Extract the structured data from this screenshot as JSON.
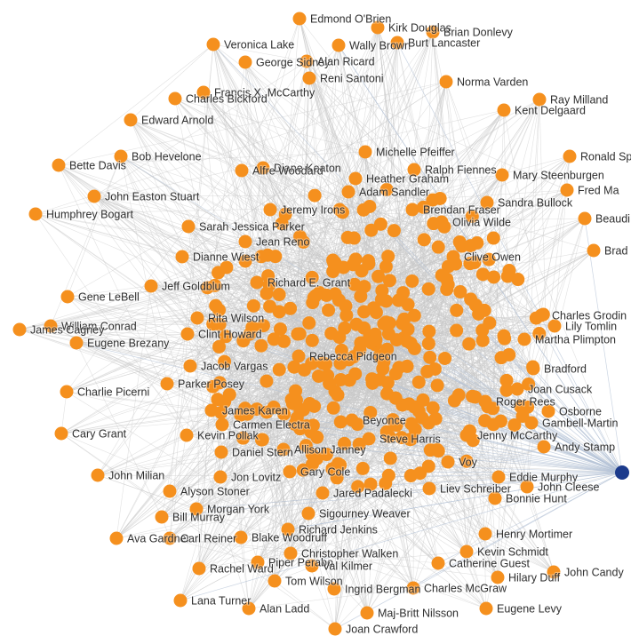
{
  "graph": {
    "colors": {
      "node": "#f5901e",
      "node_selected": "#1b3a8c",
      "edge": "#c8c8c8",
      "label": "#2f2f2f",
      "background": "#ffffff"
    },
    "selected_label": "Stev",
    "nodes": [
      {
        "label": "Edmond O'Brien"
      },
      {
        "label": "Kirk Douglas"
      },
      {
        "label": "Brian Donlevy"
      },
      {
        "label": "Veronica Lake"
      },
      {
        "label": "Wally Brown"
      },
      {
        "label": "Burt Lancaster"
      },
      {
        "label": "George Sidney"
      },
      {
        "label": "Alan Ricard"
      },
      {
        "label": "Reni Santoni"
      },
      {
        "label": "Norma Varden"
      },
      {
        "label": "Ray Milland"
      },
      {
        "label": "Francis X. McCarthy"
      },
      {
        "label": "Charles Bickford"
      },
      {
        "label": "Kent Delgaard"
      },
      {
        "label": "Edward Arnold"
      },
      {
        "label": "Michelle Pfeiffer"
      },
      {
        "label": "Ronald Sp"
      },
      {
        "label": "Bob Hevelone"
      },
      {
        "label": "Bette Davis"
      },
      {
        "label": "Diane Keaton"
      },
      {
        "label": "Ralph Fiennes"
      },
      {
        "label": "Mary Steenburgen"
      },
      {
        "label": "Heather Graham"
      },
      {
        "label": "Fred Ma"
      },
      {
        "label": "Alfre Woodard"
      },
      {
        "label": "John Easton Stuart"
      },
      {
        "label": "Adam Sandler"
      },
      {
        "label": "Sandra Bullock"
      },
      {
        "label": "Humphrey Bogart"
      },
      {
        "label": "Jeremy Irons"
      },
      {
        "label": "Brendan Fraser"
      },
      {
        "label": "Beaudi"
      },
      {
        "label": "Sarah Jessica Parker"
      },
      {
        "label": "Olivia Wilde"
      },
      {
        "label": "Brad"
      },
      {
        "label": "Dianne Wiest"
      },
      {
        "label": "Jean Reno"
      },
      {
        "label": "Clive Owen"
      },
      {
        "label": "Richard E. Grant"
      },
      {
        "label": "Gene LeBell"
      },
      {
        "label": "Jeff Goldblum"
      },
      {
        "label": "Rita Wilson"
      },
      {
        "label": "Charles Grodin"
      },
      {
        "label": "William Conrad"
      },
      {
        "label": "James Cagney"
      },
      {
        "label": "Clint Howard"
      },
      {
        "label": "Lily Tomlin"
      },
      {
        "label": "Eugene Brezany"
      },
      {
        "label": "Martha Plimpton"
      },
      {
        "label": "Rebecca Pidgeon"
      },
      {
        "label": "Jacob Vargas"
      },
      {
        "label": "Bradford"
      },
      {
        "label": "Charlie Picerni"
      },
      {
        "label": "Parker Posey"
      },
      {
        "label": "Joan Cusack"
      },
      {
        "label": "James Karen"
      },
      {
        "label": "Roger Rees"
      },
      {
        "label": "Carmen Electra"
      },
      {
        "label": "Beyonce"
      },
      {
        "label": "Osborne"
      },
      {
        "label": "Cary Grant"
      },
      {
        "label": "Kevin Pollak"
      },
      {
        "label": "Steve Harris"
      },
      {
        "label": "Gambell-Martin"
      },
      {
        "label": "Jenny McCarthy"
      },
      {
        "label": "Daniel Stern"
      },
      {
        "label": "Andy Stamp"
      },
      {
        "label": "Allison Janney"
      },
      {
        "label": "Voy"
      },
      {
        "label": "John Milian"
      },
      {
        "label": "Jon Lovitz"
      },
      {
        "label": "Gary Cole"
      },
      {
        "label": "Eddie Murphy"
      },
      {
        "label": "Jared Padalecki"
      },
      {
        "label": "Liev Schreiber"
      },
      {
        "label": "John Cleese"
      },
      {
        "label": "Alyson Stoner"
      },
      {
        "label": "Bonnie Hunt"
      },
      {
        "label": "Morgan York"
      },
      {
        "label": "Sigourney Weaver"
      },
      {
        "label": "Bill Murray"
      },
      {
        "label": "Richard Jenkins"
      },
      {
        "label": "Henry Mortimer"
      },
      {
        "label": "Ava Gardner"
      },
      {
        "label": "Carl Reiner"
      },
      {
        "label": "Blake Woodruff"
      },
      {
        "label": "Kevin Schmidt"
      },
      {
        "label": "Christopher Walken"
      },
      {
        "label": "Catherine Guest"
      },
      {
        "label": "John Candy"
      },
      {
        "label": "Rachel Ward"
      },
      {
        "label": "Piper Perabo"
      },
      {
        "label": "Val Kilmer"
      },
      {
        "label": "Hilary Duff"
      },
      {
        "label": "Tom Wilson"
      },
      {
        "label": "Lana Turner"
      },
      {
        "label": "Ingrid Bergman"
      },
      {
        "label": "Charles McGraw"
      },
      {
        "label": "Alan Ladd"
      },
      {
        "label": "Maj-Britt Nilsson"
      },
      {
        "label": "Eugene Levy"
      },
      {
        "label": "Joan Crawford"
      }
    ],
    "minor_nodes": 300
  }
}
